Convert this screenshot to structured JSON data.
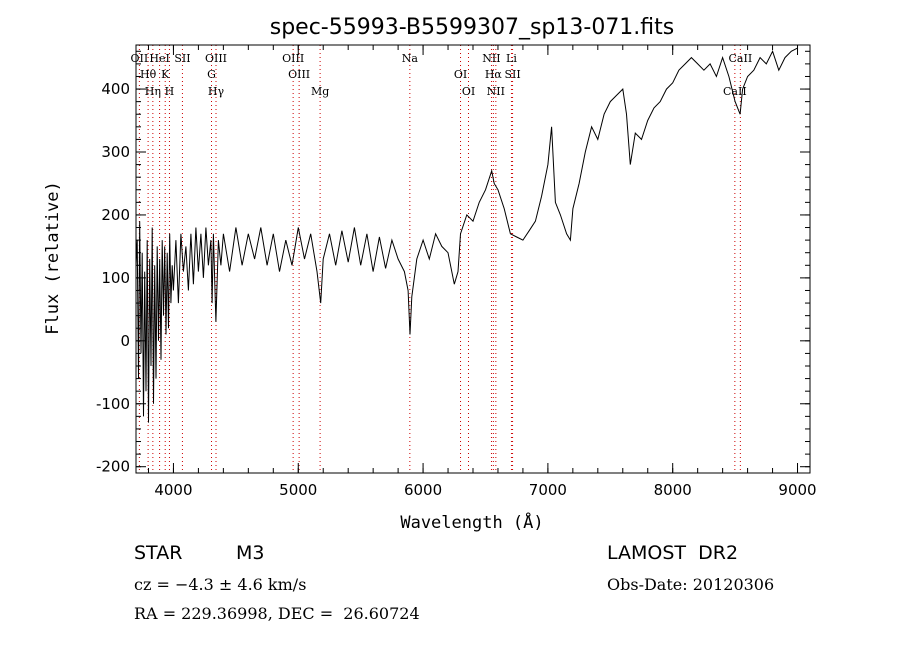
{
  "chart_data": {
    "type": "line",
    "title": "spec-55993-B5599307_sp13-071.fits",
    "xlabel": "Wavelength (Å)",
    "ylabel": "Flux (relative)",
    "xlim": [
      3700,
      9100
    ],
    "ylim": [
      -210,
      470
    ],
    "xticks": [
      4000,
      5000,
      6000,
      7000,
      8000,
      9000
    ],
    "yticks": [
      -200,
      -100,
      0,
      100,
      200,
      300,
      400
    ],
    "grid": false,
    "line_color": "#000000",
    "marker_color": "#cc0000",
    "series": [
      {
        "points": [
          [
            3700,
            120
          ],
          [
            3710,
            160
          ],
          [
            3720,
            -60
          ],
          [
            3730,
            190
          ],
          [
            3740,
            -20
          ],
          [
            3750,
            140
          ],
          [
            3760,
            -120
          ],
          [
            3770,
            110
          ],
          [
            3780,
            -80
          ],
          [
            3790,
            160
          ],
          [
            3800,
            -130
          ],
          [
            3810,
            130
          ],
          [
            3820,
            -40
          ],
          [
            3830,
            180
          ],
          [
            3840,
            -100
          ],
          [
            3850,
            120
          ],
          [
            3860,
            -60
          ],
          [
            3870,
            150
          ],
          [
            3880,
            0
          ],
          [
            3890,
            130
          ],
          [
            3900,
            -30
          ],
          [
            3910,
            160
          ],
          [
            3920,
            40
          ],
          [
            3930,
            150
          ],
          [
            3940,
            10
          ],
          [
            3950,
            140
          ],
          [
            3960,
            20
          ],
          [
            3970,
            170
          ],
          [
            3980,
            60
          ],
          [
            3990,
            120
          ],
          [
            4000,
            80
          ],
          [
            4020,
            160
          ],
          [
            4040,
            60
          ],
          [
            4060,
            170
          ],
          [
            4080,
            110
          ],
          [
            4100,
            150
          ],
          [
            4120,
            80
          ],
          [
            4140,
            170
          ],
          [
            4160,
            90
          ],
          [
            4180,
            180
          ],
          [
            4200,
            110
          ],
          [
            4220,
            170
          ],
          [
            4240,
            100
          ],
          [
            4260,
            180
          ],
          [
            4280,
            120
          ],
          [
            4300,
            160
          ],
          [
            4310,
            60
          ],
          [
            4320,
            170
          ],
          [
            4340,
            30
          ],
          [
            4360,
            160
          ],
          [
            4380,
            120
          ],
          [
            4400,
            170
          ],
          [
            4450,
            110
          ],
          [
            4500,
            180
          ],
          [
            4550,
            120
          ],
          [
            4600,
            170
          ],
          [
            4650,
            130
          ],
          [
            4700,
            180
          ],
          [
            4750,
            120
          ],
          [
            4800,
            170
          ],
          [
            4850,
            110
          ],
          [
            4900,
            160
          ],
          [
            4950,
            120
          ],
          [
            5000,
            180
          ],
          [
            5050,
            130
          ],
          [
            5100,
            170
          ],
          [
            5150,
            110
          ],
          [
            5180,
            60
          ],
          [
            5200,
            130
          ],
          [
            5250,
            170
          ],
          [
            5300,
            120
          ],
          [
            5350,
            175
          ],
          [
            5400,
            125
          ],
          [
            5450,
            180
          ],
          [
            5500,
            120
          ],
          [
            5550,
            170
          ],
          [
            5600,
            110
          ],
          [
            5650,
            165
          ],
          [
            5700,
            115
          ],
          [
            5750,
            160
          ],
          [
            5800,
            130
          ],
          [
            5850,
            110
          ],
          [
            5880,
            80
          ],
          [
            5895,
            10
          ],
          [
            5910,
            70
          ],
          [
            5950,
            130
          ],
          [
            6000,
            160
          ],
          [
            6050,
            130
          ],
          [
            6100,
            170
          ],
          [
            6150,
            150
          ],
          [
            6200,
            140
          ],
          [
            6250,
            90
          ],
          [
            6280,
            110
          ],
          [
            6300,
            170
          ],
          [
            6350,
            200
          ],
          [
            6400,
            190
          ],
          [
            6450,
            220
          ],
          [
            6500,
            240
          ],
          [
            6550,
            270
          ],
          [
            6570,
            250
          ],
          [
            6600,
            240
          ],
          [
            6650,
            210
          ],
          [
            6700,
            170
          ],
          [
            6750,
            165
          ],
          [
            6800,
            160
          ],
          [
            6850,
            175
          ],
          [
            6900,
            190
          ],
          [
            6950,
            230
          ],
          [
            7000,
            280
          ],
          [
            7030,
            340
          ],
          [
            7060,
            220
          ],
          [
            7100,
            200
          ],
          [
            7150,
            170
          ],
          [
            7180,
            160
          ],
          [
            7200,
            210
          ],
          [
            7250,
            250
          ],
          [
            7300,
            300
          ],
          [
            7350,
            340
          ],
          [
            7400,
            320
          ],
          [
            7450,
            360
          ],
          [
            7500,
            380
          ],
          [
            7550,
            390
          ],
          [
            7600,
            400
          ],
          [
            7630,
            360
          ],
          [
            7660,
            280
          ],
          [
            7700,
            330
          ],
          [
            7750,
            320
          ],
          [
            7800,
            350
          ],
          [
            7850,
            370
          ],
          [
            7900,
            380
          ],
          [
            7950,
            400
          ],
          [
            8000,
            410
          ],
          [
            8050,
            430
          ],
          [
            8100,
            440
          ],
          [
            8150,
            450
          ],
          [
            8200,
            440
          ],
          [
            8250,
            430
          ],
          [
            8300,
            440
          ],
          [
            8350,
            420
          ],
          [
            8400,
            450
          ],
          [
            8450,
            420
          ],
          [
            8500,
            380
          ],
          [
            8540,
            360
          ],
          [
            8560,
            400
          ],
          [
            8600,
            420
          ],
          [
            8650,
            430
          ],
          [
            8700,
            450
          ],
          [
            8750,
            440
          ],
          [
            8800,
            460
          ],
          [
            8850,
            430
          ],
          [
            8900,
            450
          ],
          [
            8950,
            460
          ],
          [
            9000,
            465
          ]
        ]
      }
    ],
    "lines": [
      {
        "wavelength": 3727,
        "labels": [
          "OII"
        ]
      },
      {
        "wavelength": 3797,
        "labels": [
          "Hθ"
        ]
      },
      {
        "wavelength": 3835,
        "labels": [
          "Hη"
        ]
      },
      {
        "wavelength": 3889,
        "labels": [
          "HeI"
        ]
      },
      {
        "wavelength": 3934,
        "labels": [
          "K"
        ]
      },
      {
        "wavelength": 3968,
        "labels": [
          "H"
        ]
      },
      {
        "wavelength": 4072,
        "labels": [
          "SII"
        ]
      },
      {
        "wavelength": 4305,
        "labels": [
          "G"
        ]
      },
      {
        "wavelength": 4341,
        "labels": [
          "Hγ",
          "OIII"
        ]
      },
      {
        "wavelength": 4959,
        "labels": [
          "OIII"
        ]
      },
      {
        "wavelength": 5007,
        "labels": [
          "OIII"
        ]
      },
      {
        "wavelength": 5175,
        "labels": [
          "Mg"
        ]
      },
      {
        "wavelength": 5894,
        "labels": [
          "Na"
        ]
      },
      {
        "wavelength": 6300,
        "labels": [
          "OI"
        ]
      },
      {
        "wavelength": 6364,
        "labels": [
          "OI"
        ]
      },
      {
        "wavelength": 6548,
        "labels": [
          "NII"
        ]
      },
      {
        "wavelength": 6563,
        "labels": [
          "Hα"
        ]
      },
      {
        "wavelength": 6583,
        "labels": [
          "NII"
        ]
      },
      {
        "wavelength": 6708,
        "labels": [
          "Li"
        ]
      },
      {
        "wavelength": 6717,
        "labels": [
          "SII"
        ]
      },
      {
        "wavelength": 8498,
        "labels": [
          "CaII"
        ]
      },
      {
        "wavelength": 8542,
        "labels": [
          "CaII"
        ]
      }
    ]
  },
  "info": {
    "object_class": "STAR",
    "subclass": "M3",
    "survey": "LAMOST  DR2",
    "cz": "cz = −4.3 ± 4.6 km/s",
    "obs_date": "Obs-Date: 20120306",
    "coords": "RA = 229.36998, DEC =  26.60724"
  }
}
